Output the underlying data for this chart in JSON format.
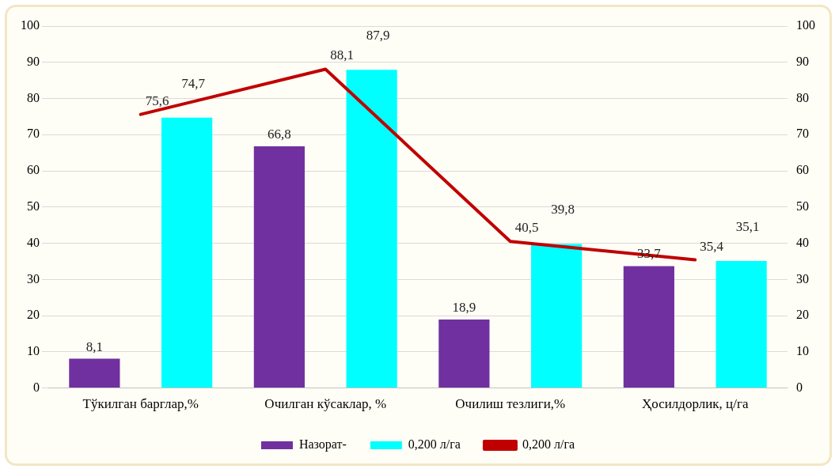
{
  "chart_data": {
    "type": "bar",
    "categories": [
      "Тўкилган барглар,%",
      "Очилган кўсаклар, %",
      "Очилиш тезлиги,%",
      "Ҳосилдорлик, ц/га"
    ],
    "series": [
      {
        "name": "Назорат-",
        "color": "#7030a0",
        "values": [
          8.1,
          66.8,
          18.9,
          33.7
        ],
        "value_labels": [
          "8,1",
          "66,8",
          "18,9",
          "33,7"
        ]
      },
      {
        "name": "0,200 л/га",
        "color": "#00ffff",
        "values": [
          74.7,
          87.9,
          39.8,
          35.1
        ],
        "value_labels": [
          "74,7",
          "87,9",
          "39,8",
          "35,1"
        ]
      },
      {
        "name": "0,200 л/га",
        "type": "line",
        "color": "#c00000",
        "values": [
          75.6,
          88.1,
          40.5,
          35.4
        ],
        "value_labels": [
          "75,6",
          "88,1",
          "40,5",
          "35,4"
        ]
      }
    ],
    "ylim": [
      0,
      100
    ],
    "yticks": [
      0,
      10,
      20,
      30,
      40,
      50,
      60,
      70,
      80,
      90,
      100
    ],
    "y2lim": [
      0,
      100
    ],
    "y2ticks": [
      0,
      10,
      20,
      30,
      40,
      50,
      60,
      70,
      80,
      90,
      100
    ],
    "grid": "y",
    "legend": "bottom",
    "marker": "none"
  }
}
